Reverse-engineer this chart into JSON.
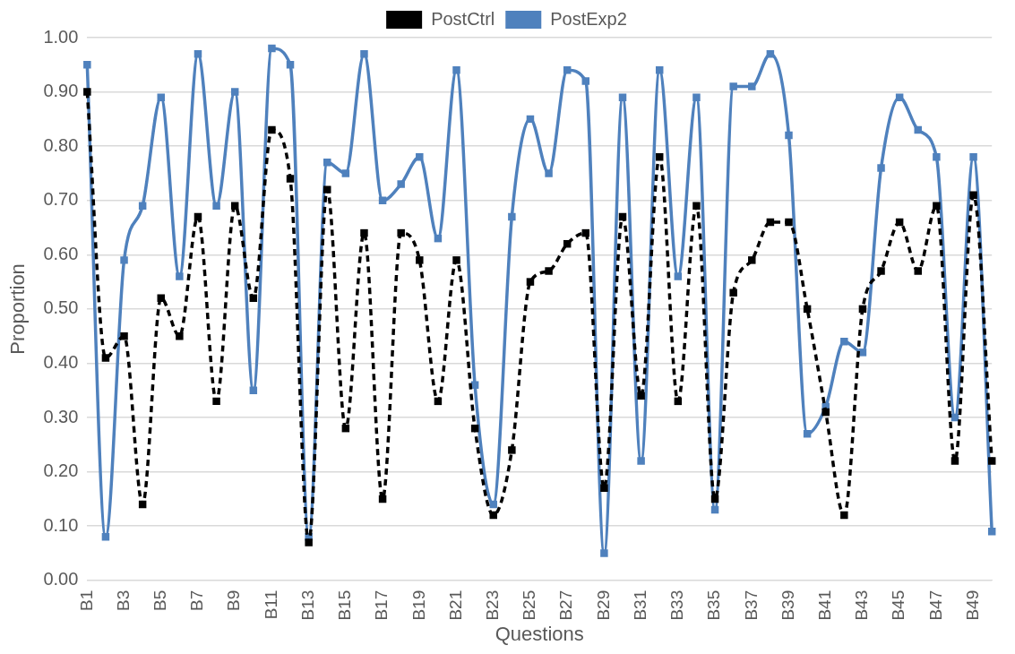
{
  "chart_data": {
    "type": "line",
    "xlabel": "Questions",
    "ylabel": "Proportion",
    "categories": [
      "B1",
      null,
      "B3",
      null,
      "B5",
      null,
      "B7",
      null,
      "B9",
      null,
      "B11",
      null,
      "B13",
      null,
      "B15",
      null,
      "B17",
      null,
      "B19",
      null,
      "B21",
      null,
      "B23",
      null,
      "B25",
      null,
      "B27",
      null,
      "B29",
      null,
      "B31",
      null,
      "B33",
      null,
      "B35",
      null,
      "B37",
      null,
      "B39",
      null,
      "B41",
      null,
      "B43",
      null,
      "B45",
      null,
      "B47",
      null,
      "B49",
      null
    ],
    "series": [
      {
        "name": "PostCtrl",
        "color": "#000000",
        "line_style": "dashed",
        "values": [
          0.9,
          0.41,
          0.45,
          0.14,
          0.52,
          0.45,
          0.67,
          0.33,
          0.69,
          0.52,
          0.83,
          0.74,
          0.07,
          0.72,
          0.28,
          0.64,
          0.15,
          0.64,
          0.59,
          0.33,
          0.59,
          0.28,
          0.12,
          0.24,
          0.55,
          0.57,
          0.62,
          0.64,
          0.17,
          0.67,
          0.34,
          0.78,
          0.33,
          0.69,
          0.15,
          0.53,
          0.59,
          0.66,
          0.66,
          0.5,
          0.31,
          0.12,
          0.5,
          0.57,
          0.66,
          0.57,
          0.69,
          0.22,
          0.71,
          0.22
        ]
      },
      {
        "name": "PostExp2",
        "color": "#4f81bd",
        "line_style": "solid",
        "values": [
          0.95,
          0.08,
          0.59,
          0.69,
          0.89,
          0.56,
          0.97,
          0.69,
          0.9,
          0.35,
          0.98,
          0.95,
          0.08,
          0.77,
          0.75,
          0.97,
          0.7,
          0.73,
          0.78,
          0.63,
          0.94,
          0.36,
          0.14,
          0.67,
          0.85,
          0.75,
          0.94,
          0.92,
          0.05,
          0.89,
          0.22,
          0.94,
          0.56,
          0.89,
          0.13,
          0.91,
          0.91,
          0.97,
          0.82,
          0.27,
          0.32,
          0.44,
          0.42,
          0.76,
          0.89,
          0.83,
          0.78,
          0.3,
          0.78,
          0.09
        ]
      }
    ],
    "ylim": [
      0,
      1
    ],
    "yticks": [
      {
        "value": 0,
        "label": "0.00"
      },
      {
        "value": 0.1,
        "label": "0.10"
      },
      {
        "value": 0.2,
        "label": "0.20"
      },
      {
        "value": 0.3,
        "label": "0.30"
      },
      {
        "value": 0.4,
        "label": "0.40"
      },
      {
        "value": 0.5,
        "label": "0.50"
      },
      {
        "value": 0.6,
        "label": "0.60"
      },
      {
        "value": 0.7,
        "label": "0.70"
      },
      {
        "value": 0.8,
        "label": "0.80"
      },
      {
        "value": 0.9,
        "label": "0.90"
      },
      {
        "value": 1,
        "label": "1.00"
      }
    ],
    "grid": "y",
    "legend": "top",
    "marker": "square"
  }
}
